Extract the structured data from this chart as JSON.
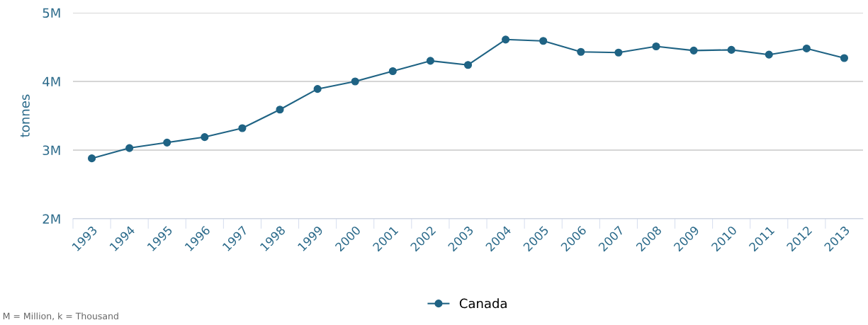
{
  "chart_data": {
    "type": "line",
    "ylabel": "tonnes",
    "categories": [
      "1993",
      "1994",
      "1995",
      "1996",
      "1997",
      "1998",
      "1999",
      "2000",
      "2001",
      "2002",
      "2003",
      "2004",
      "2005",
      "2006",
      "2007",
      "2008",
      "2009",
      "2010",
      "2011",
      "2012",
      "2013"
    ],
    "series": [
      {
        "name": "Canada",
        "color": "#1f6384",
        "values": [
          2880000,
          3030000,
          3110000,
          3190000,
          3320000,
          3590000,
          3890000,
          4000000,
          4150000,
          4300000,
          4240000,
          4610000,
          4590000,
          4430000,
          4420000,
          4510000,
          4450000,
          4460000,
          4390000,
          4480000,
          4340000
        ]
      }
    ],
    "ylim": [
      2000000,
      5000000
    ],
    "yticks": [
      {
        "value": 2000000,
        "label": "2M"
      },
      {
        "value": 3000000,
        "label": "3M"
      },
      {
        "value": 4000000,
        "label": "4M"
      },
      {
        "value": 5000000,
        "label": "5M"
      }
    ],
    "grid": "y",
    "legend": "bottom",
    "marker": "circle",
    "line_style": "solid",
    "annotations": [
      "M = Million, k = Thousand"
    ]
  }
}
